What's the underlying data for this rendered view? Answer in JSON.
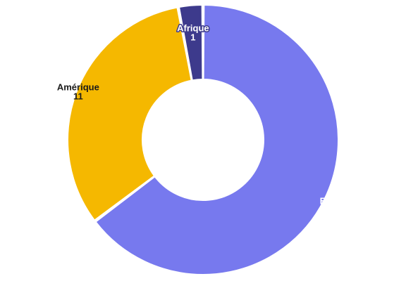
{
  "chart_data": {
    "type": "pie",
    "variant": "donut",
    "title": "",
    "slices": [
      {
        "label": "Europe",
        "value": 22,
        "color": "#7779ee"
      },
      {
        "label": "Amérique",
        "value": 11,
        "color": "#f5b800"
      },
      {
        "label": "Afrique",
        "value": 1,
        "color": "#3d3a8c"
      }
    ],
    "data_labels": "inside",
    "legend": "none"
  }
}
